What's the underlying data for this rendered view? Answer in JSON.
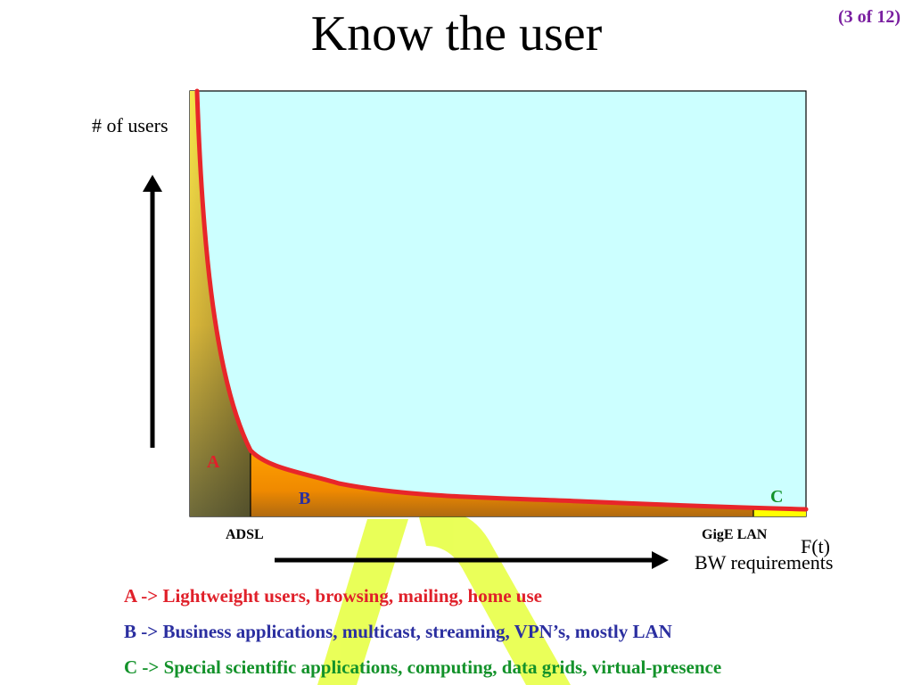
{
  "slide": {
    "title": "Know the user",
    "page_number": "(3 of 12)"
  },
  "diagram": {
    "y_axis_label": "# of users",
    "x_axis_label_top": "F(t)",
    "x_axis_label_bottom": "BW requirements",
    "ticks": {
      "adsl": "ADSL",
      "gige": "GigE LAN"
    },
    "regions": {
      "a": "A",
      "b": "B",
      "c": "C"
    },
    "colors": {
      "plot_background": "#ccffff",
      "curve": "#e8262a",
      "region_a": "#f2e04a",
      "region_b": "#ff9a00",
      "region_c": "#ffff00",
      "watermark": "#e6ff3c"
    }
  },
  "legend": {
    "a": "A -> Lightweight users, browsing, mailing, home use",
    "b": "B -> Business applications, multicast, streaming, VPN’s, mostly LAN",
    "c": "C -> Special scientific applications, computing, data grids, virtual-presence"
  }
}
